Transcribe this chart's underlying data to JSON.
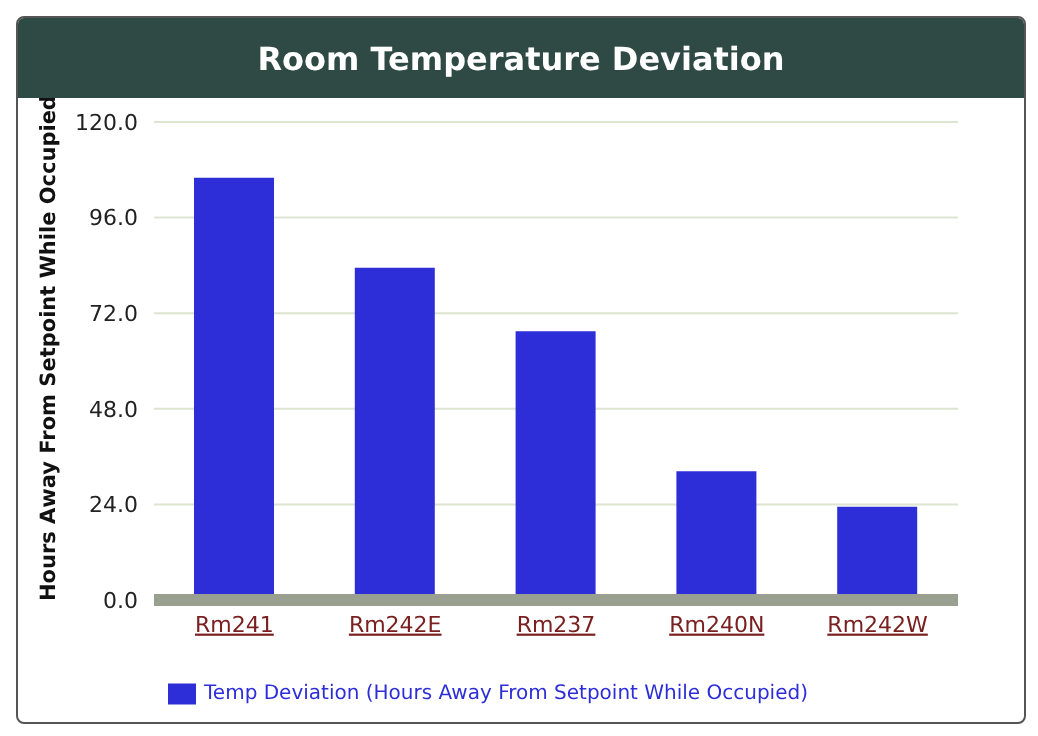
{
  "chart_data": {
    "type": "bar",
    "title": "Room Temperature Deviation",
    "ylabel": "Hours Away From Setpoint While Occupied",
    "categories": [
      "Rm241",
      "Rm242E",
      "Rm237",
      "Rm240N",
      "Rm242W"
    ],
    "series": [
      {
        "name": "Temp Deviation (Hours Away From Setpoint While Occupied)",
        "color": "#2e2ed8",
        "values": [
          106,
          83.4,
          67.5,
          32.3,
          23.4
        ]
      }
    ],
    "ylim": [
      0,
      120
    ],
    "yticks": [
      {
        "value": 0,
        "label": "0.0"
      },
      {
        "value": 24,
        "label": "24.0"
      },
      {
        "value": 48,
        "label": "48.0"
      },
      {
        "value": 72,
        "label": "72.0"
      },
      {
        "value": 96,
        "label": "96.0"
      },
      {
        "value": 120,
        "label": "120.0"
      }
    ],
    "grid": "y",
    "legend": "bottom"
  }
}
